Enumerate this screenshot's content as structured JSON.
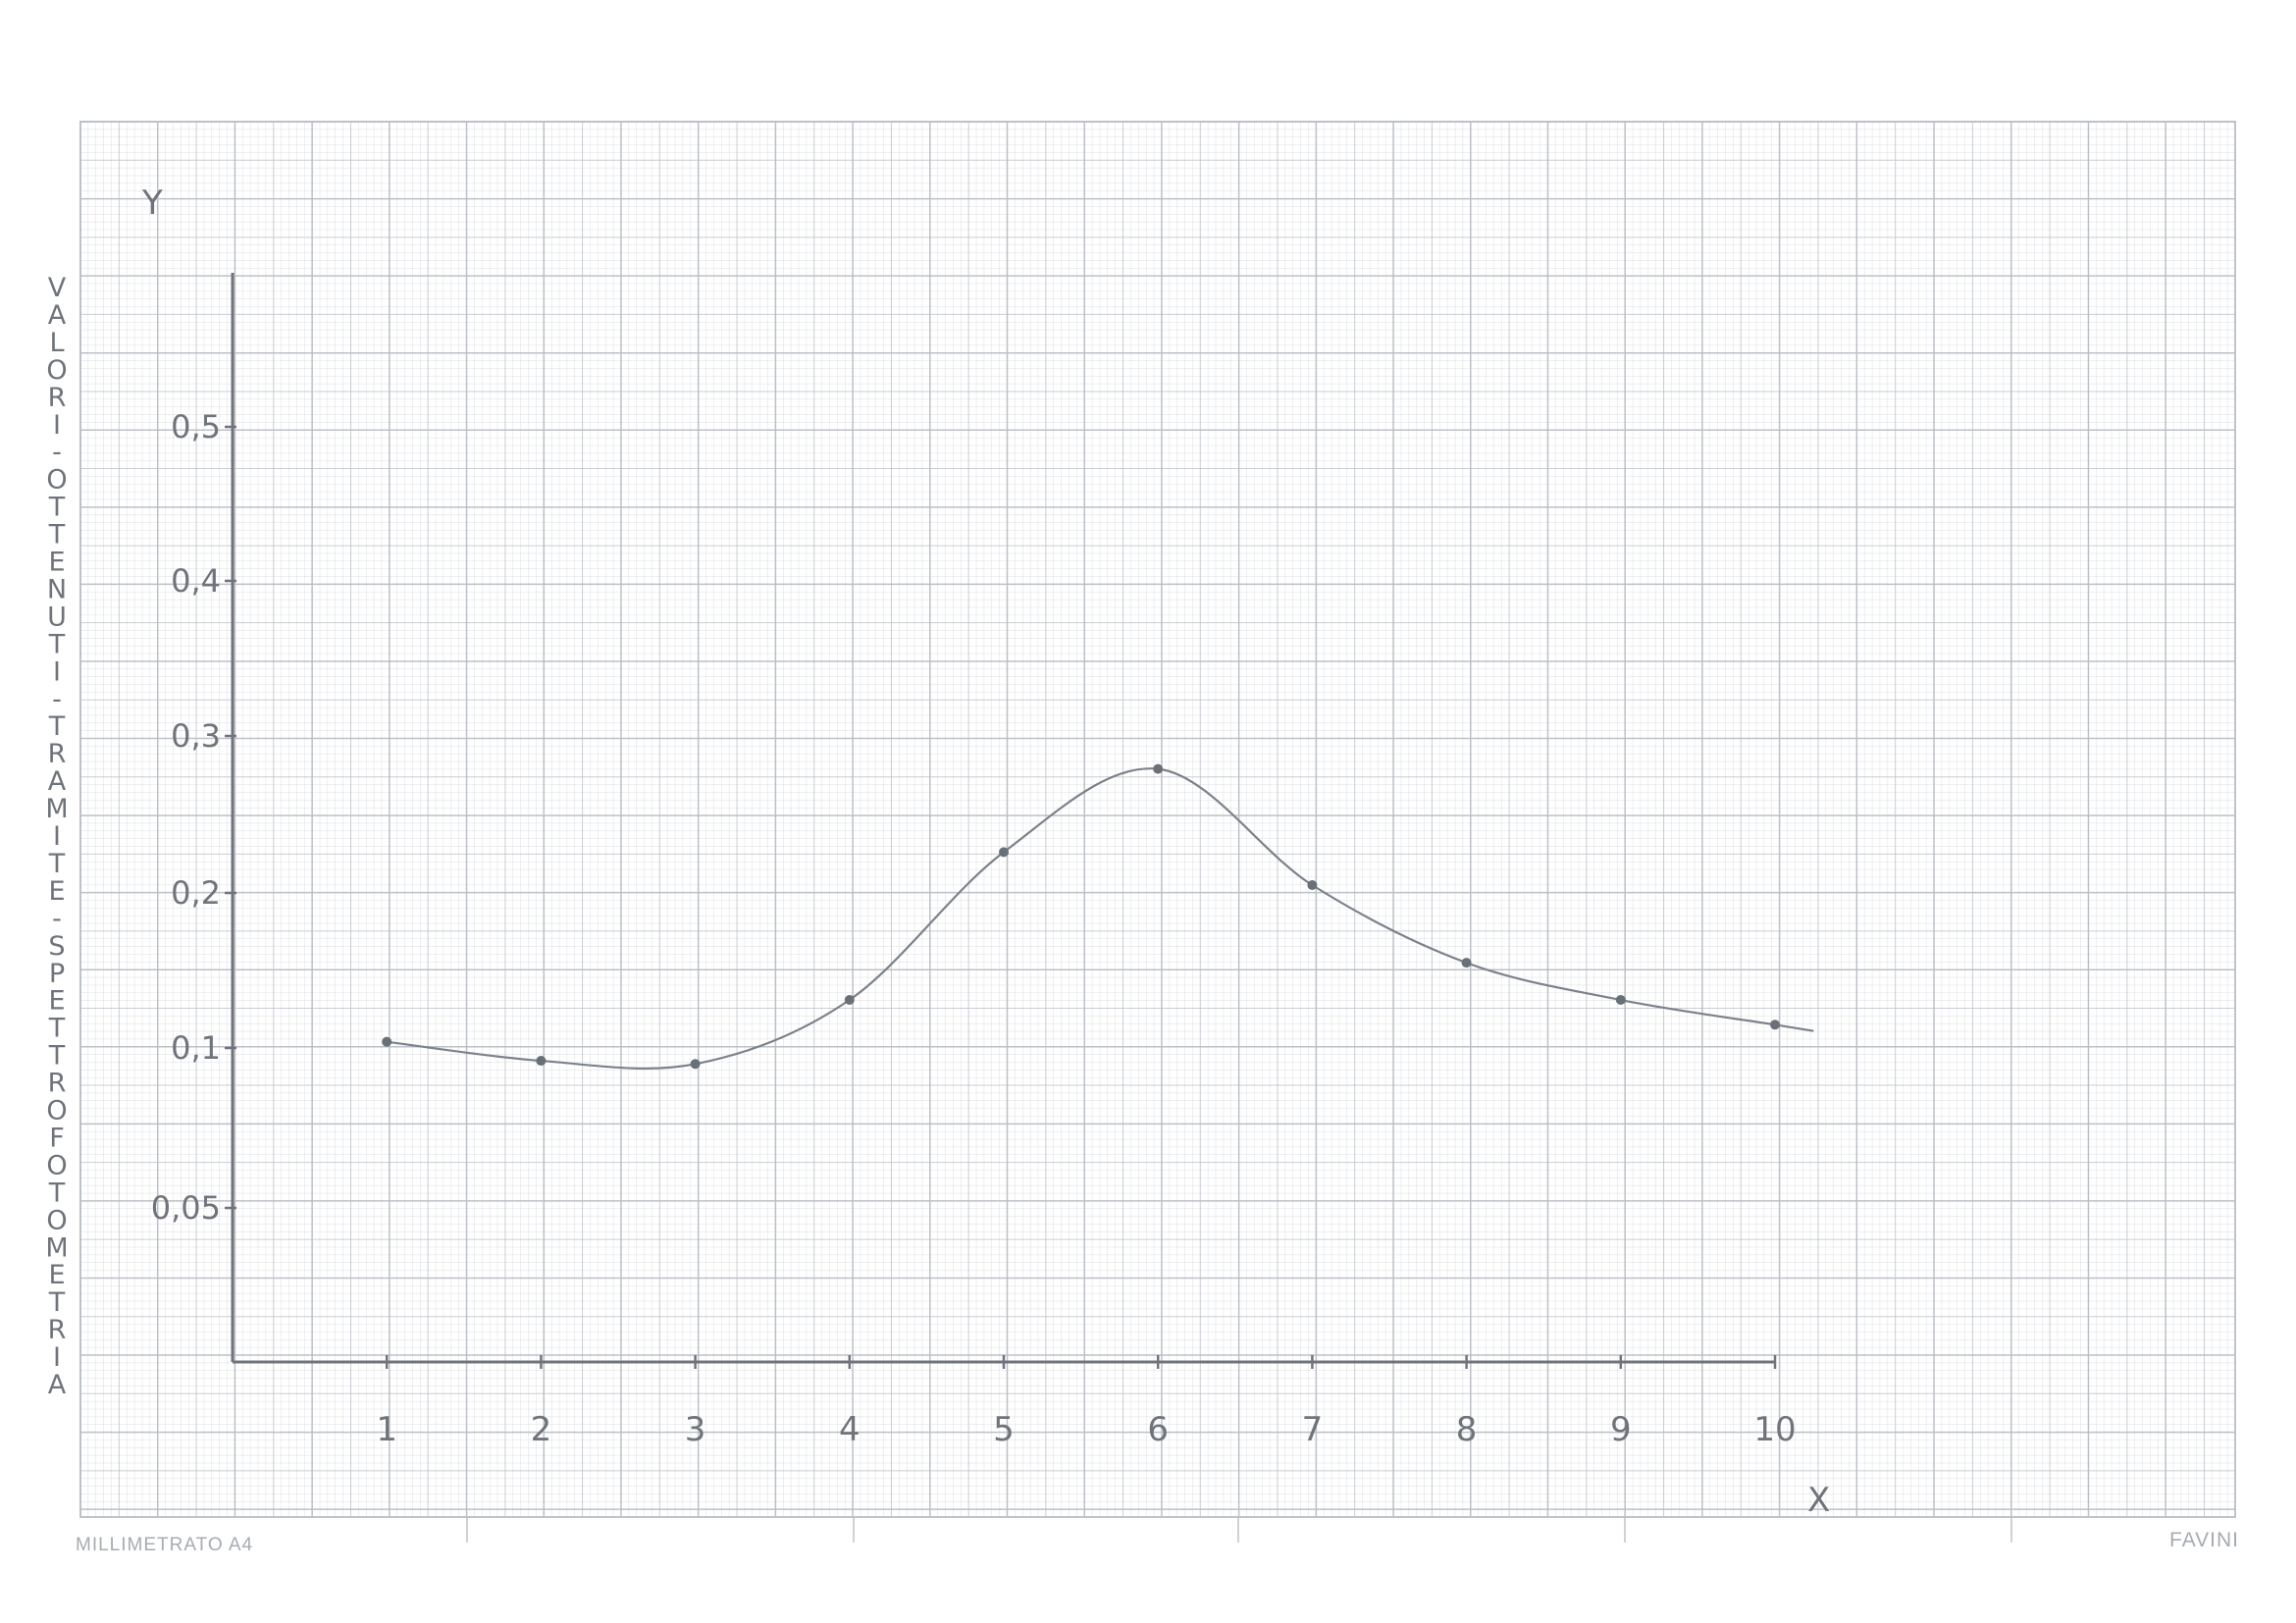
{
  "paper": {
    "brand_left": "MILLIMETRATO A4",
    "brand_right": "FAVINI",
    "grid_color": "#b9bec5",
    "ink_color": "#6f747c"
  },
  "chart_data": {
    "type": "line",
    "title": "",
    "xlabel": "X",
    "ylabel": "Y",
    "ylabel_vertical": "VALORI OTTENUTI TRAMITE SPETTROFOTOMETRIA",
    "x_ticks": [
      "1",
      "2",
      "3",
      "4",
      "5",
      "6",
      "7",
      "8",
      "9",
      "10"
    ],
    "y_ticks": [
      {
        "value": 0.05,
        "label": "0,05"
      },
      {
        "value": 0.1,
        "label": "0,1"
      },
      {
        "value": 0.2,
        "label": "0,2"
      },
      {
        "value": 0.3,
        "label": "0,3"
      },
      {
        "value": 0.4,
        "label": "0,4"
      },
      {
        "value": 0.5,
        "label": "0,5"
      }
    ],
    "series": [
      {
        "x": [
          1,
          2,
          3,
          4,
          5,
          6,
          7,
          8,
          9,
          10
        ],
        "y": [
          0.104,
          0.096,
          0.095,
          0.131,
          0.226,
          0.279,
          0.205,
          0.155,
          0.131,
          0.115
        ]
      }
    ],
    "grid": true
  }
}
